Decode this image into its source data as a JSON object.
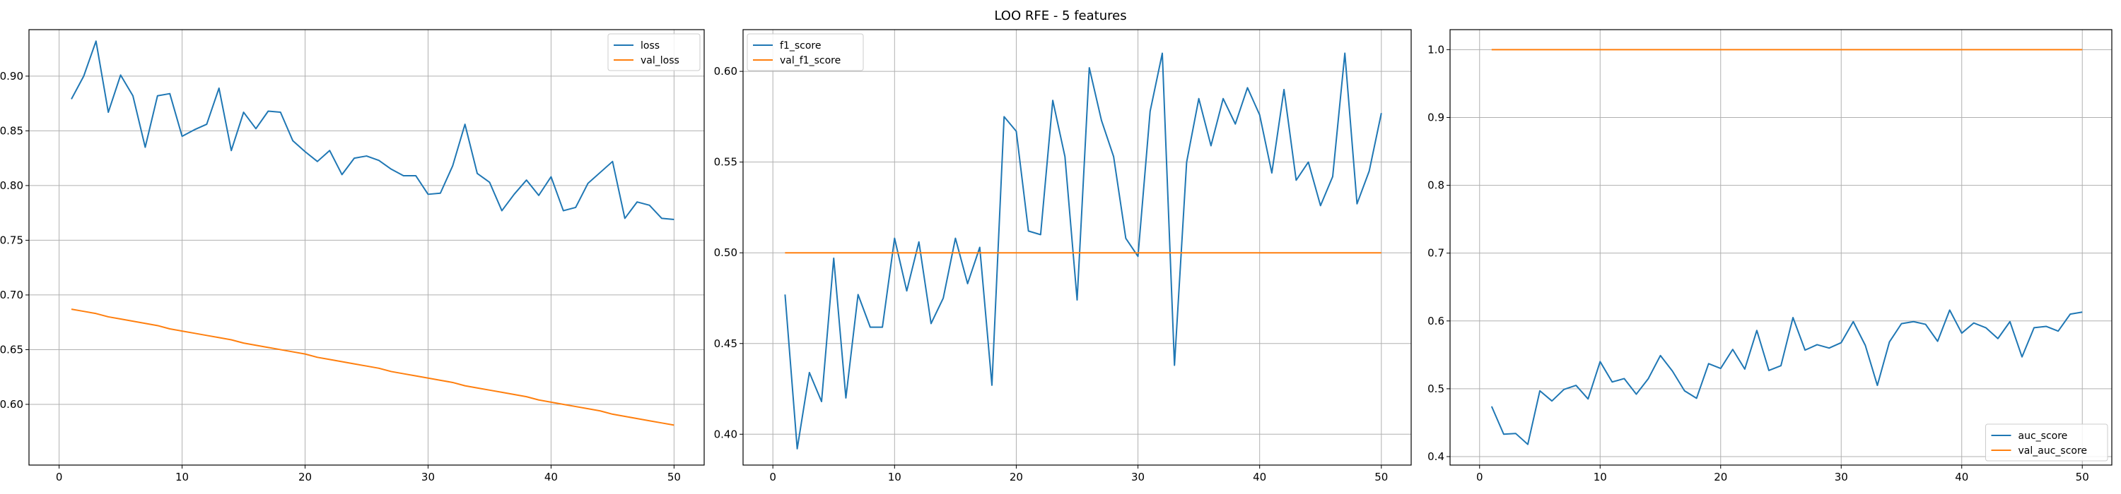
{
  "figure": {
    "suptitle": "LOO RFE - 5 features"
  },
  "colors": {
    "series_train": "#1f77b4",
    "series_val": "#ff7f0e",
    "grid": "#b0b0b0",
    "axis": "#000000"
  },
  "chart_data": [
    {
      "type": "line",
      "xlim": [
        -2.45,
        52.45
      ],
      "ylim": [
        0.5445,
        0.9425
      ],
      "grid": true,
      "legend_position": "upper right",
      "xticks": [
        0,
        10,
        20,
        30,
        40,
        50
      ],
      "xtick_labels": [
        "0",
        "10",
        "20",
        "30",
        "40",
        "50"
      ],
      "yticks": [
        0.6,
        0.65,
        0.7,
        0.75,
        0.8,
        0.85,
        0.9
      ],
      "ytick_labels": [
        "0.60",
        "0.65",
        "0.70",
        "0.75",
        "0.80",
        "0.85",
        "0.90"
      ],
      "series": [
        {
          "name": "loss",
          "x": [
            1,
            2,
            3,
            4,
            5,
            6,
            7,
            8,
            9,
            10,
            11,
            12,
            13,
            14,
            15,
            16,
            17,
            18,
            19,
            20,
            21,
            22,
            23,
            24,
            25,
            26,
            27,
            28,
            29,
            30,
            31,
            32,
            33,
            34,
            35,
            36,
            37,
            38,
            39,
            40,
            41,
            42,
            43,
            44,
            45,
            46,
            47,
            48,
            49,
            50
          ],
          "y": [
            0.879,
            0.9,
            0.932,
            0.867,
            0.901,
            0.882,
            0.835,
            0.882,
            0.884,
            0.845,
            0.851,
            0.856,
            0.889,
            0.832,
            0.867,
            0.852,
            0.868,
            0.867,
            0.841,
            0.831,
            0.822,
            0.832,
            0.81,
            0.825,
            0.827,
            0.823,
            0.815,
            0.809,
            0.809,
            0.792,
            0.793,
            0.818,
            0.856,
            0.811,
            0.803,
            0.777,
            0.792,
            0.805,
            0.791,
            0.808,
            0.777,
            0.78,
            0.802,
            0.812,
            0.822,
            0.77,
            0.785,
            0.782,
            0.77,
            0.769
          ]
        },
        {
          "name": "val_loss",
          "x": [
            1,
            2,
            3,
            4,
            5,
            6,
            7,
            8,
            9,
            10,
            11,
            12,
            13,
            14,
            15,
            16,
            17,
            18,
            19,
            20,
            21,
            22,
            23,
            24,
            25,
            26,
            27,
            28,
            29,
            30,
            31,
            32,
            33,
            34,
            35,
            36,
            37,
            38,
            39,
            40,
            41,
            42,
            43,
            44,
            45,
            46,
            47,
            48,
            49,
            50
          ],
          "y": [
            0.687,
            0.685,
            0.683,
            0.68,
            0.678,
            0.676,
            0.674,
            0.672,
            0.669,
            0.667,
            0.665,
            0.663,
            0.661,
            0.659,
            0.656,
            0.654,
            0.652,
            0.65,
            0.648,
            0.646,
            0.643,
            0.641,
            0.639,
            0.637,
            0.635,
            0.633,
            0.63,
            0.628,
            0.626,
            0.624,
            0.622,
            0.62,
            0.617,
            0.615,
            0.613,
            0.611,
            0.609,
            0.607,
            0.604,
            0.602,
            0.6,
            0.598,
            0.596,
            0.594,
            0.591,
            0.589,
            0.587,
            0.585,
            0.583,
            0.581
          ]
        }
      ]
    },
    {
      "type": "line",
      "xlim": [
        -2.45,
        52.45
      ],
      "ylim": [
        0.383,
        0.623
      ],
      "grid": true,
      "legend_position": "upper left",
      "xticks": [
        0,
        10,
        20,
        30,
        40,
        50
      ],
      "xtick_labels": [
        "0",
        "10",
        "20",
        "30",
        "40",
        "50"
      ],
      "yticks": [
        0.4,
        0.45,
        0.5,
        0.55,
        0.6
      ],
      "ytick_labels": [
        "0.40",
        "0.45",
        "0.50",
        "0.55",
        "0.60"
      ],
      "series": [
        {
          "name": "f1_score",
          "x": [
            1,
            2,
            3,
            4,
            5,
            6,
            7,
            8,
            9,
            10,
            11,
            12,
            13,
            14,
            15,
            16,
            17,
            18,
            19,
            20,
            21,
            22,
            23,
            24,
            25,
            26,
            27,
            28,
            29,
            30,
            31,
            32,
            33,
            34,
            35,
            36,
            37,
            38,
            39,
            40,
            41,
            42,
            43,
            44,
            45,
            46,
            47,
            48,
            49,
            50
          ],
          "y": [
            0.477,
            0.392,
            0.434,
            0.418,
            0.497,
            0.42,
            0.477,
            0.459,
            0.459,
            0.508,
            0.479,
            0.506,
            0.461,
            0.475,
            0.508,
            0.483,
            0.503,
            0.427,
            0.575,
            0.567,
            0.512,
            0.51,
            0.584,
            0.553,
            0.474,
            0.602,
            0.573,
            0.553,
            0.508,
            0.498,
            0.578,
            0.61,
            0.438,
            0.55,
            0.585,
            0.559,
            0.585,
            0.571,
            0.591,
            0.576,
            0.544,
            0.59,
            0.54,
            0.55,
            0.526,
            0.542,
            0.61,
            0.527,
            0.545,
            0.577
          ]
        },
        {
          "name": "val_f1_score",
          "x": [
            1,
            50
          ],
          "y": [
            0.5,
            0.5
          ]
        }
      ]
    },
    {
      "type": "line",
      "xlim": [
        -2.45,
        52.45
      ],
      "ylim": [
        0.3875,
        1.0295
      ],
      "grid": true,
      "legend_position": "lower right",
      "xticks": [
        0,
        10,
        20,
        30,
        40,
        50
      ],
      "xtick_labels": [
        "0",
        "10",
        "20",
        "30",
        "40",
        "50"
      ],
      "yticks": [
        0.4,
        0.5,
        0.6,
        0.7,
        0.8,
        0.9,
        1.0
      ],
      "ytick_labels": [
        "0.4",
        "0.5",
        "0.6",
        "0.7",
        "0.8",
        "0.9",
        "1.0"
      ],
      "series": [
        {
          "name": "auc_score",
          "x": [
            1,
            2,
            3,
            4,
            5,
            6,
            7,
            8,
            9,
            10,
            11,
            12,
            13,
            14,
            15,
            16,
            17,
            18,
            19,
            20,
            21,
            22,
            23,
            24,
            25,
            26,
            27,
            28,
            29,
            30,
            31,
            32,
            33,
            34,
            35,
            36,
            37,
            38,
            39,
            40,
            41,
            42,
            43,
            44,
            45,
            46,
            47,
            48,
            49,
            50
          ],
          "y": [
            0.474,
            0.433,
            0.434,
            0.418,
            0.497,
            0.482,
            0.499,
            0.505,
            0.485,
            0.54,
            0.51,
            0.515,
            0.492,
            0.515,
            0.549,
            0.526,
            0.497,
            0.486,
            0.537,
            0.53,
            0.558,
            0.529,
            0.586,
            0.527,
            0.534,
            0.605,
            0.557,
            0.565,
            0.56,
            0.568,
            0.599,
            0.564,
            0.505,
            0.569,
            0.596,
            0.599,
            0.595,
            0.57,
            0.616,
            0.582,
            0.597,
            0.59,
            0.574,
            0.599,
            0.547,
            0.59,
            0.592,
            0.585,
            0.61,
            0.613
          ]
        },
        {
          "name": "val_auc_score",
          "x": [
            1,
            50
          ],
          "y": [
            1.0,
            1.0
          ]
        }
      ]
    }
  ]
}
